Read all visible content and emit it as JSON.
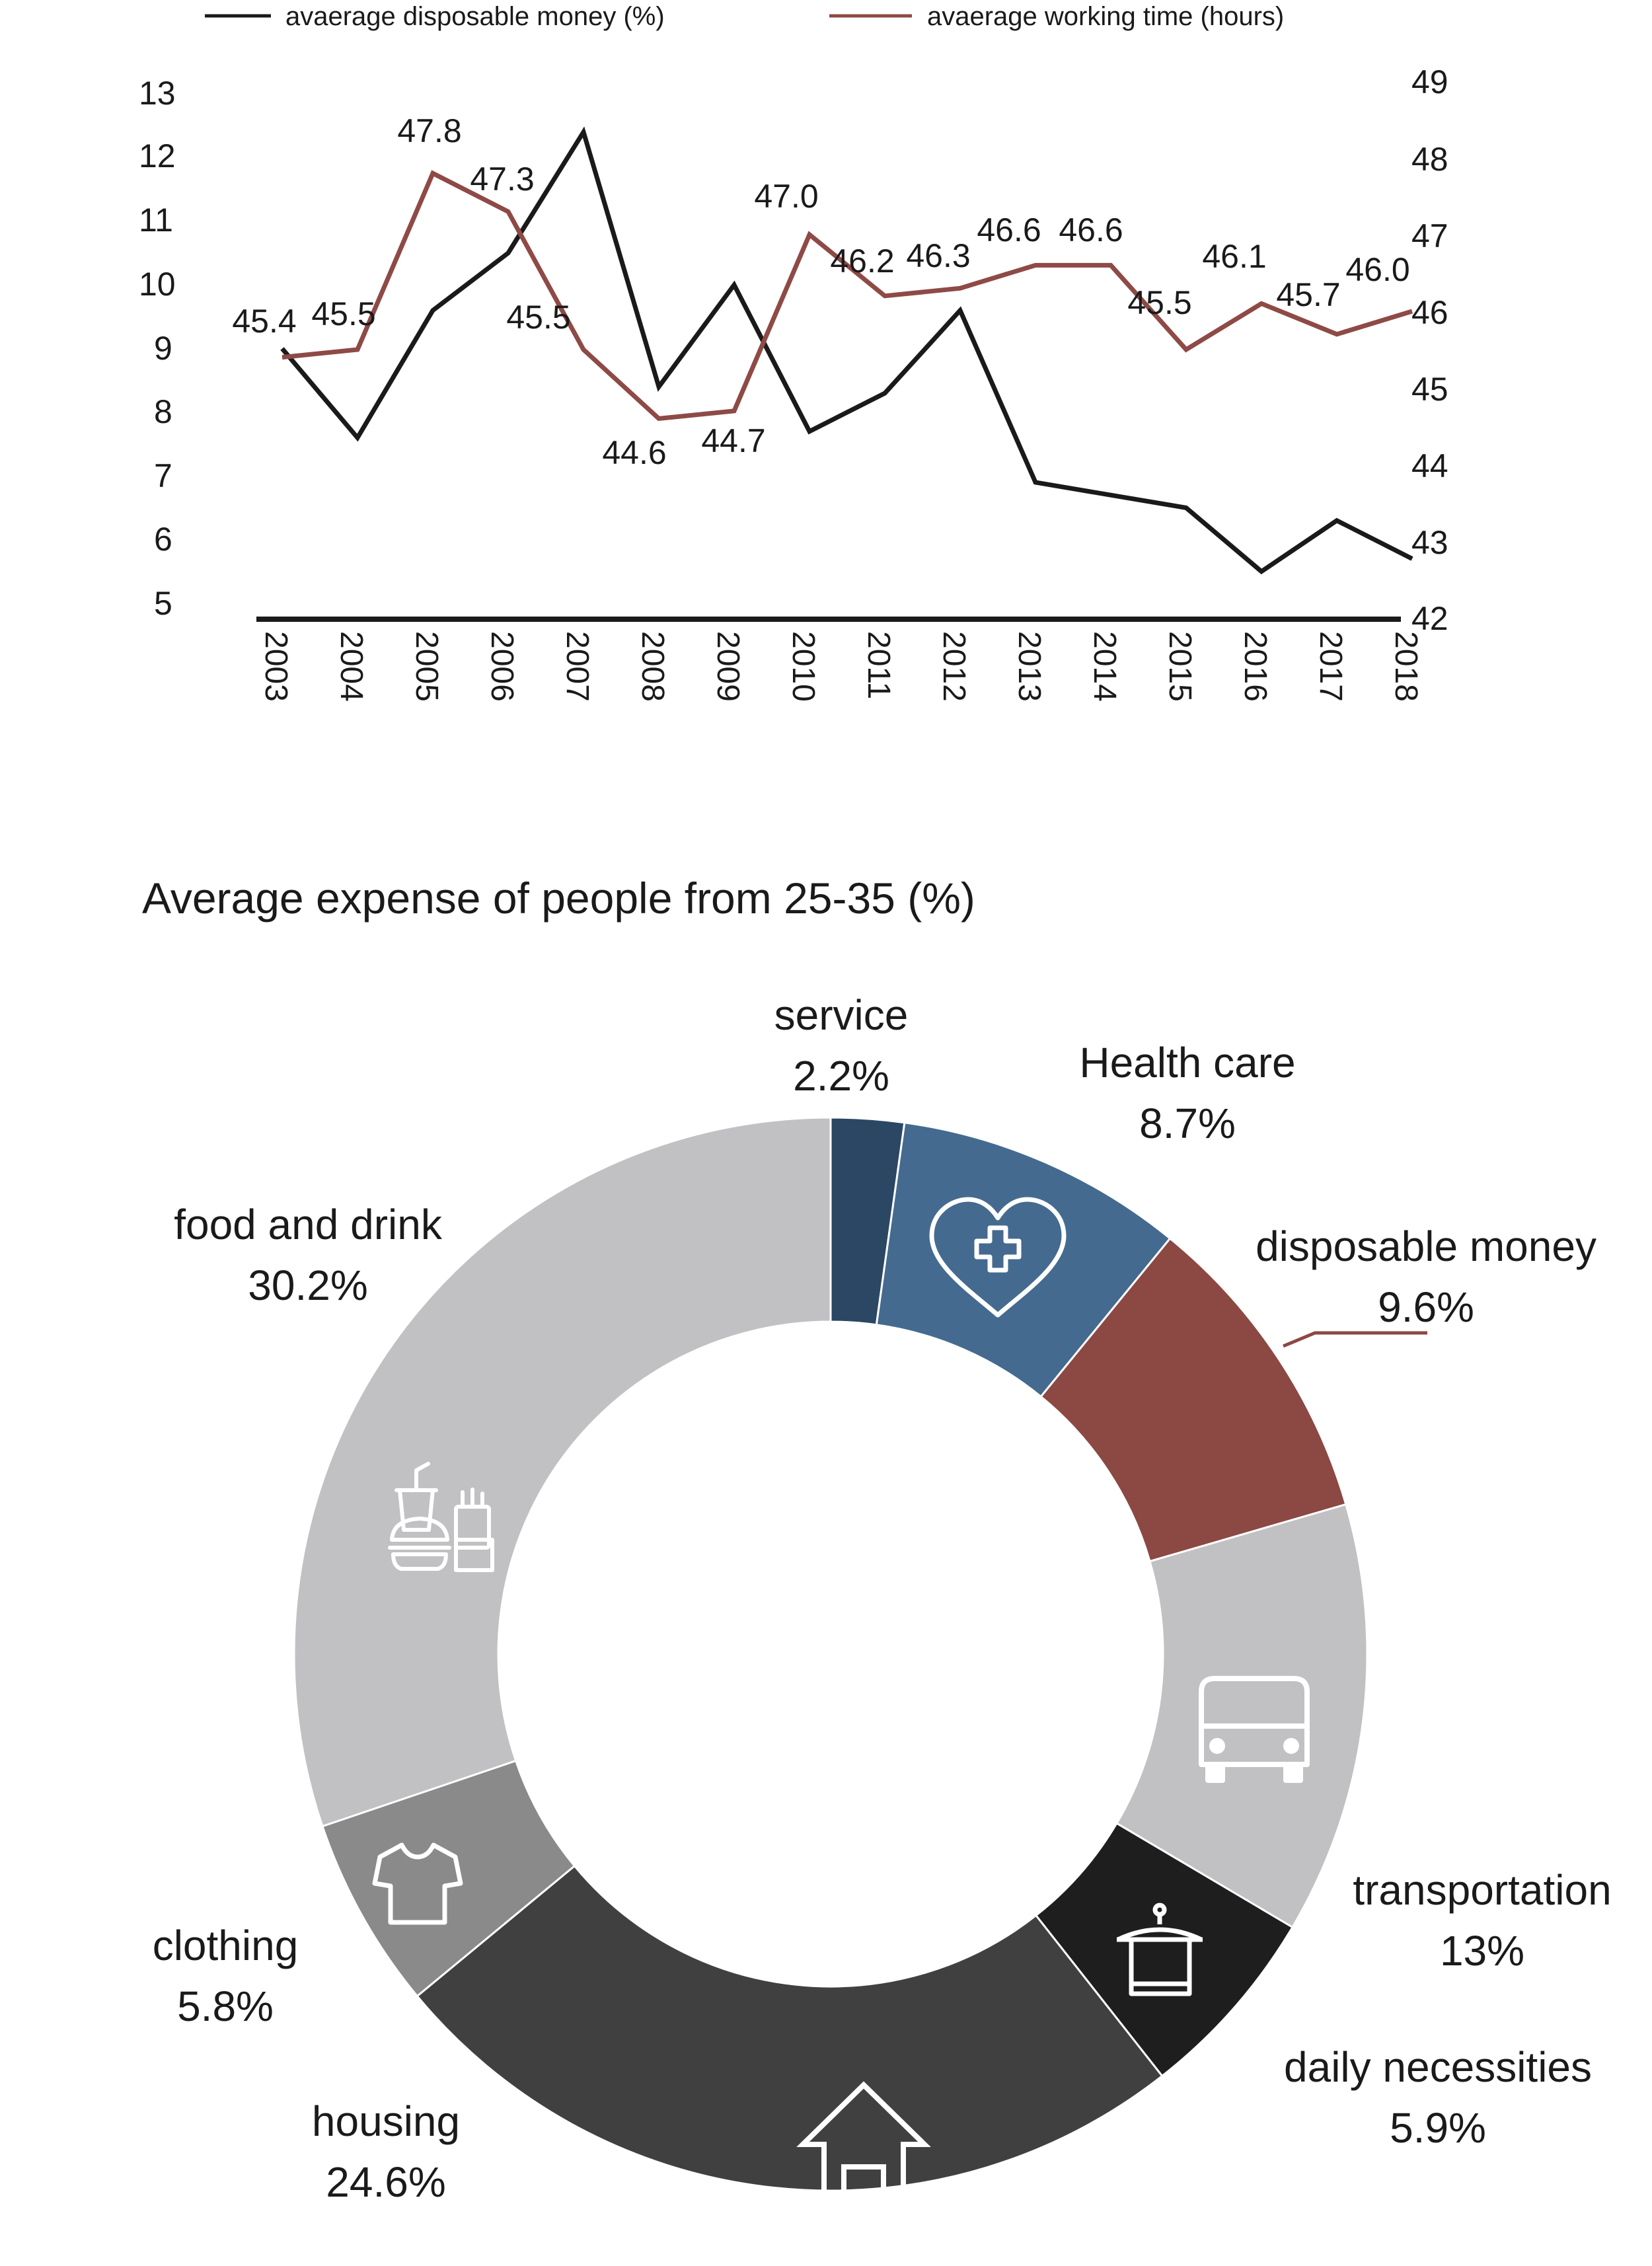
{
  "chart_data": [
    {
      "type": "line",
      "title": "",
      "xlabel": "",
      "x": [
        "2003",
        "2004",
        "2005",
        "2006",
        "2007",
        "2008",
        "2009",
        "2010",
        "2011",
        "2012",
        "2013",
        "2014",
        "2015",
        "2016",
        "2017",
        "2018"
      ],
      "legend": {
        "placement": "top",
        "entries": [
          "avaerage disposable money (%)",
          "avaerage working time  (hours)"
        ]
      },
      "y_left": {
        "ylim": [
          5,
          13
        ],
        "ticks": [
          "5",
          "6",
          "7",
          "8",
          "9",
          "10",
          "11",
          "12",
          "13"
        ]
      },
      "y_right": {
        "ylim": [
          42,
          49
        ],
        "ticks": [
          "42",
          "43",
          "44",
          "45",
          "46",
          "47",
          "48",
          "49"
        ]
      },
      "series": [
        {
          "name": "avaerage disposable money (%)",
          "axis": "left",
          "color": "#1a1a1a",
          "values": [
            9.0,
            7.6,
            9.6,
            10.5,
            12.4,
            8.4,
            10.0,
            7.7,
            8.3,
            9.6,
            6.9,
            6.7,
            6.5,
            5.5,
            6.3,
            5.7
          ]
        },
        {
          "name": "avaerage working time  (hours)",
          "axis": "right",
          "color": "#8e4a46",
          "values": [
            45.4,
            45.5,
            47.8,
            47.3,
            45.5,
            44.6,
            44.7,
            47.0,
            46.2,
            46.3,
            46.6,
            46.6,
            45.5,
            46.1,
            45.7,
            46.0
          ],
          "labels": [
            "45.4",
            "45.5",
            "47.8",
            "47.3",
            "45.5",
            "44.6",
            "44.7",
            "47.0",
            "46.2",
            "46.3",
            "46.6",
            "46.6",
            "45.5",
            "46.1",
            "45.7",
            "46.0"
          ]
        }
      ]
    },
    {
      "type": "pie",
      "variant": "donut",
      "title": "Average expense of people from 25-35 (%)",
      "slices": [
        {
          "label": "service",
          "value_label": "2.2%",
          "value": 2.2,
          "color": "#2b4764",
          "icon": ""
        },
        {
          "label": "Health care",
          "value_label": "8.7%",
          "value": 8.7,
          "color": "#446a8f",
          "icon": "heart-plus-icon"
        },
        {
          "label": "disposable money",
          "value_label": "9.6%",
          "value": 9.6,
          "color": "#8c4843",
          "icon": ""
        },
        {
          "label": "transportation",
          "value_label": "13%",
          "value": 13,
          "color": "#c1c1c3",
          "icon": "bus-icon"
        },
        {
          "label": "daily necessities",
          "value_label": "5.9%",
          "value": 5.9,
          "color": "#1e1e1e",
          "icon": "towel-icon"
        },
        {
          "label": "housing",
          "value_label": "24.6%",
          "value": 24.6,
          "color": "#404041",
          "icon": "house-icon"
        },
        {
          "label": "clothing",
          "value_label": "5.8%",
          "value": 5.8,
          "color": "#8a8a8b",
          "icon": "tshirt-icon"
        },
        {
          "label": "food and drink",
          "value_label": "30.2%",
          "value": 30.2,
          "color": "#c1c1c3",
          "icon": "fast-food-icon"
        }
      ]
    }
  ]
}
